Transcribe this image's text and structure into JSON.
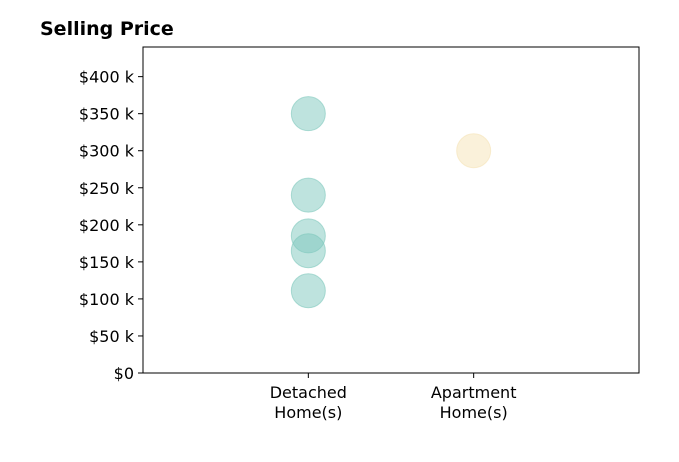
{
  "chart_data": {
    "type": "scatter",
    "title": "Selling Price",
    "xlabel": "",
    "ylabel": "",
    "categories": [
      {
        "lines": [
          "Detached",
          "Home(s)"
        ]
      },
      {
        "lines": [
          "Apartment",
          "Home(s)"
        ]
      }
    ],
    "x_range": [
      -1,
      2
    ],
    "ylim": [
      0,
      440000
    ],
    "y_ticks": [
      {
        "value": 0,
        "label": "$0"
      },
      {
        "value": 50000,
        "label": "$50 k"
      },
      {
        "value": 100000,
        "label": "$100 k"
      },
      {
        "value": 150000,
        "label": "$150 k"
      },
      {
        "value": 200000,
        "label": "$200 k"
      },
      {
        "value": 250000,
        "label": "$250 k"
      },
      {
        "value": 300000,
        "label": "$300 k"
      },
      {
        "value": 350000,
        "label": "$350 k"
      },
      {
        "value": 400000,
        "label": "$400 k"
      }
    ],
    "grid": false,
    "series": [
      {
        "color": "#7ec8bd",
        "points": [
          {
            "x": 0,
            "y": 350000
          },
          {
            "x": 0,
            "y": 240000
          },
          {
            "x": 0,
            "y": 185000
          },
          {
            "x": 0,
            "y": 165000
          },
          {
            "x": 0,
            "y": 111000
          }
        ]
      },
      {
        "color": "#f5e3b5",
        "points": [
          {
            "x": 1,
            "y": 300000
          }
        ]
      }
    ]
  }
}
